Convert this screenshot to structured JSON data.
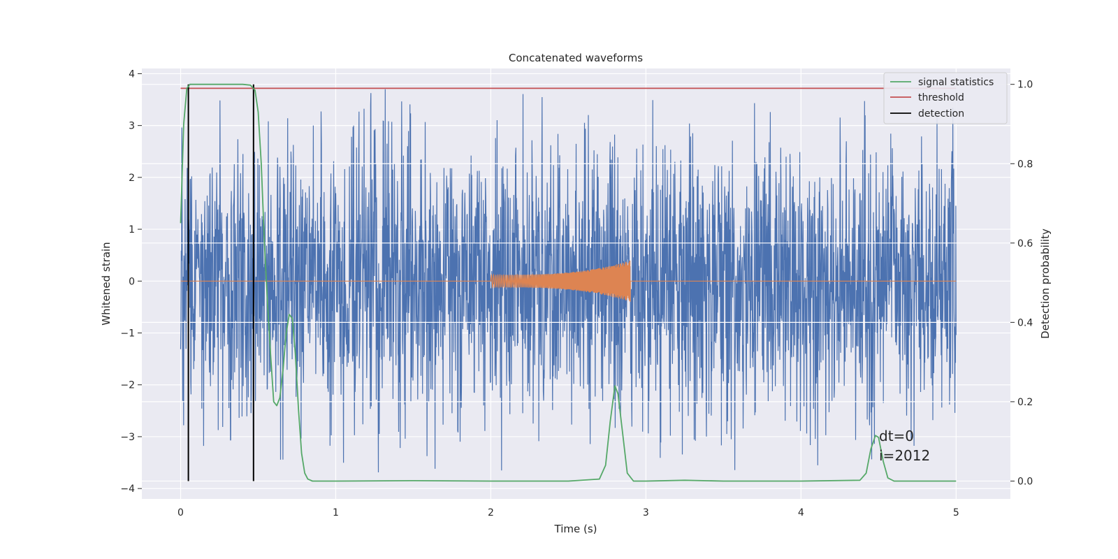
{
  "chart_data": {
    "type": "line",
    "title": "Concatenated waveforms",
    "xlabel": "Time (s)",
    "ylabel": "Whitened strain",
    "y2label": "Detection probability",
    "xlim": [
      -0.25,
      5.35
    ],
    "ylim": [
      -4.2,
      4.1
    ],
    "y2lim": [
      -0.045,
      1.04
    ],
    "xticks": [
      0,
      1,
      2,
      3,
      4,
      5
    ],
    "yticks": [
      -4,
      -3,
      -2,
      -1,
      0,
      1,
      2,
      3,
      4
    ],
    "y2ticks": [
      0.0,
      0.2,
      0.4,
      0.6,
      0.8,
      1.0
    ],
    "xtick_labels": [
      "0",
      "1",
      "2",
      "3",
      "4",
      "5"
    ],
    "ytick_labels": [
      "−4",
      "−3",
      "−2",
      "−1",
      "0",
      "1",
      "2",
      "3",
      "4"
    ],
    "y2tick_labels": [
      "0.0",
      "0.2",
      "0.4",
      "0.6",
      "0.8",
      "1.0"
    ],
    "grid": true,
    "legend_position": "top-right",
    "colors": {
      "noise": "#4c72b0",
      "injection": "#dd8452",
      "signal_statistics": "#55a868",
      "threshold": "#c44e52",
      "detection": "#000000",
      "axes_bg": "#eaeaf2",
      "grid": "#ffffff"
    },
    "noise_series": {
      "t_start": 0,
      "t_end": 5,
      "typical_amplitude": 2.0,
      "max": 3.7,
      "min": -3.9
    },
    "injection_series": {
      "t_start": 2.0,
      "t_end": 2.9,
      "amplitude_start": 0.12,
      "amplitude_end": 0.4
    },
    "series": [
      {
        "name": "signal statistics",
        "axis": "right",
        "x": [
          0.0,
          0.02,
          0.04,
          0.06,
          0.08,
          0.1,
          0.2,
          0.3,
          0.4,
          0.45,
          0.48,
          0.5,
          0.52,
          0.54,
          0.56,
          0.58,
          0.6,
          0.62,
          0.64,
          0.66,
          0.68,
          0.7,
          0.72,
          0.74,
          0.76,
          0.78,
          0.8,
          0.82,
          0.85,
          1.0,
          1.5,
          2.0,
          2.5,
          2.7,
          2.74,
          2.77,
          2.8,
          2.82,
          2.85,
          2.88,
          2.92,
          3.0,
          3.25,
          3.5,
          4.0,
          4.38,
          4.42,
          4.45,
          4.48,
          4.5,
          4.53,
          4.56,
          4.6,
          5.0
        ],
        "y": [
          0.65,
          0.9,
          0.99,
          1.0,
          1.0,
          1.0,
          1.0,
          1.0,
          1.0,
          0.998,
          0.985,
          0.93,
          0.8,
          0.6,
          0.45,
          0.32,
          0.2,
          0.19,
          0.21,
          0.28,
          0.37,
          0.42,
          0.41,
          0.32,
          0.18,
          0.07,
          0.02,
          0.005,
          0.0,
          0.0,
          0.001,
          0.0,
          0.0,
          0.005,
          0.04,
          0.15,
          0.24,
          0.22,
          0.12,
          0.02,
          0.0,
          0.0,
          0.002,
          0.0,
          0.0,
          0.002,
          0.02,
          0.08,
          0.115,
          0.11,
          0.05,
          0.008,
          0.0,
          0.0
        ]
      },
      {
        "name": "threshold",
        "axis": "right",
        "x": [
          0,
          5
        ],
        "y": [
          0.99,
          0.99
        ]
      }
    ],
    "detections": {
      "name": "detection",
      "x": [
        0.05,
        0.47
      ],
      "y_range": [
        0,
        1.0
      ]
    },
    "legend": [
      "signal statistics",
      "threshold",
      "detection"
    ],
    "annotations": [
      "dt=0",
      "i=2012"
    ]
  }
}
